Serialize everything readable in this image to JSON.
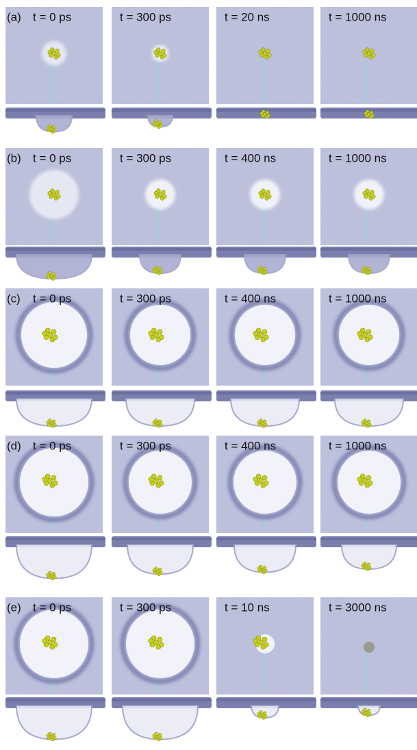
{
  "rows": [
    {
      "label": "(a)",
      "times": [
        "t = 0 ps",
        "t = 300 ps",
        "t = 20 ns",
        "t = 1000 ns"
      ]
    },
    {
      "label": "(b)",
      "times": [
        "t = 0 ps",
        "t = 300 ps",
        "t = 400 ns",
        "t = 1000 ns"
      ]
    },
    {
      "label": "(c)",
      "times": [
        "t = 0 ps",
        "t = 300 ps",
        "t = 400 ns",
        "t = 1000 ns"
      ]
    },
    {
      "label": "(d)",
      "times": [
        "t = 0 ps",
        "t = 300 ps",
        "t = 400 ns",
        "t = 1000 ns"
      ]
    },
    {
      "label": "(e)",
      "times": [
        "t = 0 ps",
        "t = 300 ps",
        "t = 10 ns",
        "t = 3000 ns"
      ]
    }
  ]
}
